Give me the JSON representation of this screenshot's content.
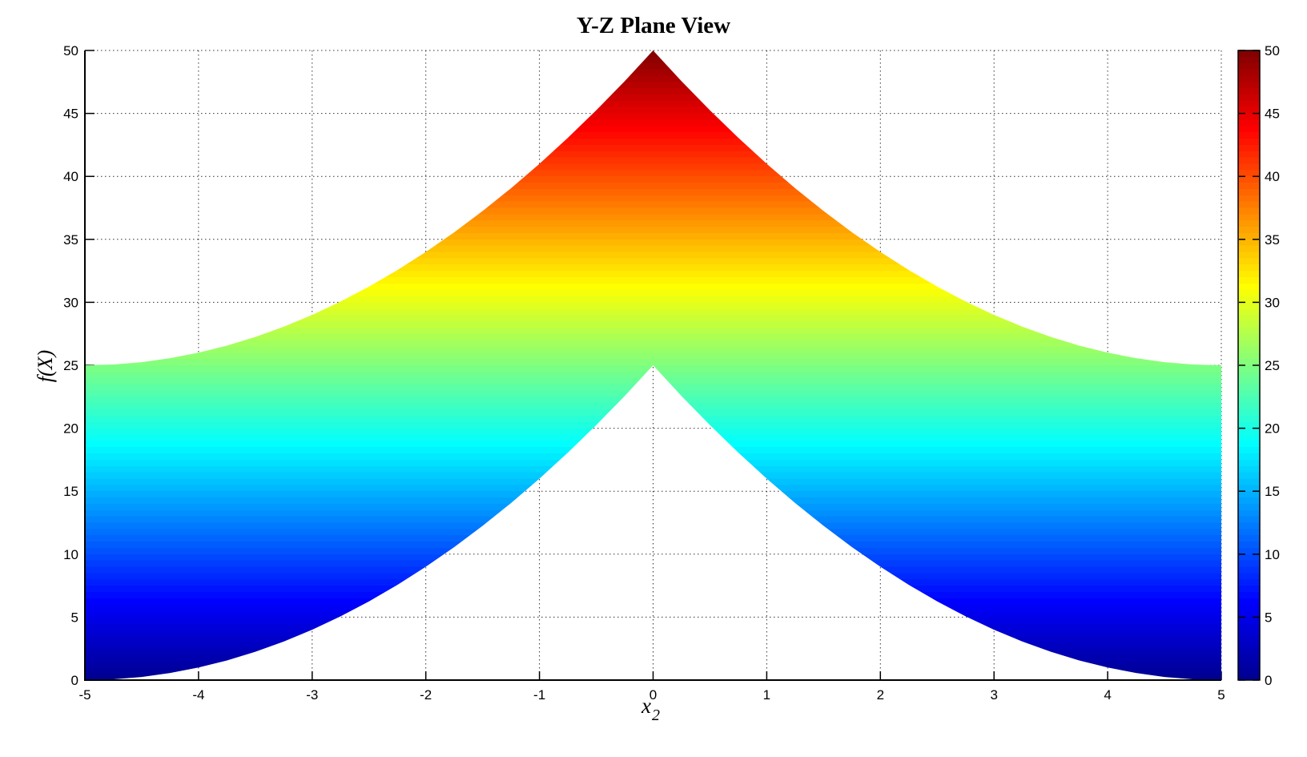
{
  "chart_data": {
    "type": "area",
    "subtype": "surface-projection-yz",
    "title": "Y-Z Plane View",
    "ylabel": "f(X)",
    "xlabel_base": "x",
    "xlabel_sub": "2",
    "xlim": [
      -5,
      5
    ],
    "ylim": [
      0,
      50
    ],
    "x_ticks": [
      -5,
      -4,
      -3,
      -2,
      -1,
      0,
      1,
      2,
      3,
      4,
      5
    ],
    "y_ticks": [
      0,
      5,
      10,
      15,
      20,
      25,
      30,
      35,
      40,
      45,
      50
    ],
    "grid": "dotted",
    "grid_color": "#333333",
    "axis_color": "#000000",
    "background_color": "#ffffff",
    "color_band_size": 0.5,
    "colormap": {
      "name": "jet",
      "stops": [
        {
          "t": 0.0,
          "color": "#00008F"
        },
        {
          "t": 0.125,
          "color": "#0000FF"
        },
        {
          "t": 0.375,
          "color": "#00FFFF"
        },
        {
          "t": 0.625,
          "color": "#FFFF00"
        },
        {
          "t": 0.875,
          "color": "#FF0000"
        },
        {
          "t": 1.0,
          "color": "#800000"
        }
      ]
    },
    "colorbar": {
      "min": 0,
      "max": 50,
      "ticks": [
        0,
        5,
        10,
        15,
        20,
        25,
        30,
        35,
        40,
        45,
        50
      ],
      "position": "right"
    },
    "series": [
      {
        "name": "f-range-envelope",
        "x": [
          -5,
          -4.75,
          -4.5,
          -4.25,
          -4,
          -3.75,
          -3.5,
          -3.25,
          -3,
          -2.75,
          -2.5,
          -2.25,
          -2,
          -1.75,
          -1.5,
          -1.25,
          -1,
          -0.75,
          -0.5,
          -0.25,
          0,
          0.25,
          0.5,
          0.75,
          1,
          1.25,
          1.5,
          1.75,
          2,
          2.25,
          2.5,
          2.75,
          3,
          3.25,
          3.5,
          3.75,
          4,
          4.25,
          4.5,
          4.75,
          5
        ],
        "lower": [
          0,
          0.0625,
          0.25,
          0.5625,
          1,
          1.5625,
          2.25,
          3.0625,
          4,
          5.0625,
          6.25,
          7.5625,
          9,
          10.5625,
          12.25,
          14.0625,
          16,
          18.0625,
          20.25,
          22.5625,
          25,
          22.5625,
          20.25,
          18.0625,
          16,
          14.0625,
          12.25,
          10.5625,
          9,
          7.5625,
          6.25,
          5.0625,
          4,
          3.0625,
          2.25,
          1.5625,
          1,
          0.5625,
          0.25,
          0.0625,
          0
        ],
        "upper": [
          25,
          25.0625,
          25.25,
          25.5625,
          26,
          26.5625,
          27.25,
          28.0625,
          29,
          30.0625,
          31.25,
          32.5625,
          34,
          35.5625,
          37.25,
          39.0625,
          41,
          43.0625,
          45.25,
          47.5625,
          50,
          47.5625,
          45.25,
          43.0625,
          41,
          39.0625,
          37.25,
          35.5625,
          34,
          32.5625,
          31.25,
          30.0625,
          29,
          28.0625,
          27.25,
          26.5625,
          26,
          25.5625,
          25.25,
          25.0625,
          25
        ]
      }
    ]
  }
}
